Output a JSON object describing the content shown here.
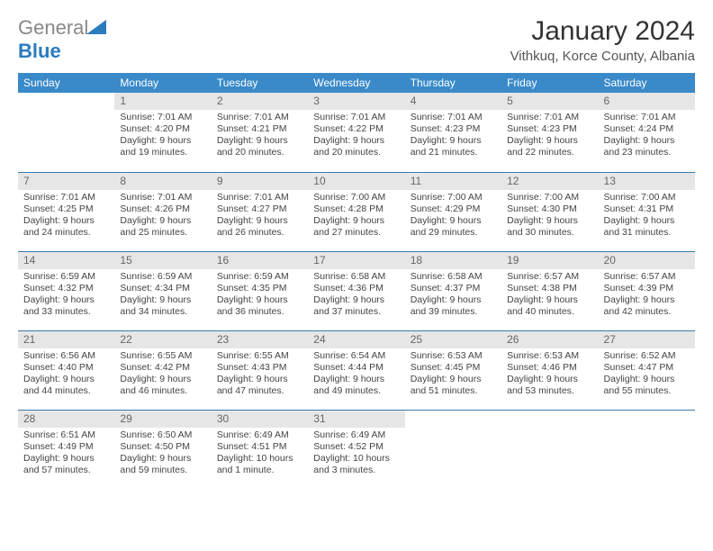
{
  "logo": {
    "word1": "General",
    "word2": "Blue"
  },
  "title": "January 2024",
  "location": "Vithkuq, Korce County, Albania",
  "colors": {
    "header_bg": "#3a8ac9",
    "header_text": "#ffffff",
    "daynum_bg": "#e6e6e6",
    "row_border": "#3a7aa8",
    "logo_gray": "#888888",
    "logo_blue": "#2b7bbf"
  },
  "weekdays": [
    "Sunday",
    "Monday",
    "Tuesday",
    "Wednesday",
    "Thursday",
    "Friday",
    "Saturday"
  ],
  "first_day_of_week_index": 1,
  "days": [
    {
      "n": "1",
      "sr": "Sunrise: 7:01 AM",
      "ss": "Sunset: 4:20 PM",
      "d1": "Daylight: 9 hours",
      "d2": "and 19 minutes."
    },
    {
      "n": "2",
      "sr": "Sunrise: 7:01 AM",
      "ss": "Sunset: 4:21 PM",
      "d1": "Daylight: 9 hours",
      "d2": "and 20 minutes."
    },
    {
      "n": "3",
      "sr": "Sunrise: 7:01 AM",
      "ss": "Sunset: 4:22 PM",
      "d1": "Daylight: 9 hours",
      "d2": "and 20 minutes."
    },
    {
      "n": "4",
      "sr": "Sunrise: 7:01 AM",
      "ss": "Sunset: 4:23 PM",
      "d1": "Daylight: 9 hours",
      "d2": "and 21 minutes."
    },
    {
      "n": "5",
      "sr": "Sunrise: 7:01 AM",
      "ss": "Sunset: 4:23 PM",
      "d1": "Daylight: 9 hours",
      "d2": "and 22 minutes."
    },
    {
      "n": "6",
      "sr": "Sunrise: 7:01 AM",
      "ss": "Sunset: 4:24 PM",
      "d1": "Daylight: 9 hours",
      "d2": "and 23 minutes."
    },
    {
      "n": "7",
      "sr": "Sunrise: 7:01 AM",
      "ss": "Sunset: 4:25 PM",
      "d1": "Daylight: 9 hours",
      "d2": "and 24 minutes."
    },
    {
      "n": "8",
      "sr": "Sunrise: 7:01 AM",
      "ss": "Sunset: 4:26 PM",
      "d1": "Daylight: 9 hours",
      "d2": "and 25 minutes."
    },
    {
      "n": "9",
      "sr": "Sunrise: 7:01 AM",
      "ss": "Sunset: 4:27 PM",
      "d1": "Daylight: 9 hours",
      "d2": "and 26 minutes."
    },
    {
      "n": "10",
      "sr": "Sunrise: 7:00 AM",
      "ss": "Sunset: 4:28 PM",
      "d1": "Daylight: 9 hours",
      "d2": "and 27 minutes."
    },
    {
      "n": "11",
      "sr": "Sunrise: 7:00 AM",
      "ss": "Sunset: 4:29 PM",
      "d1": "Daylight: 9 hours",
      "d2": "and 29 minutes."
    },
    {
      "n": "12",
      "sr": "Sunrise: 7:00 AM",
      "ss": "Sunset: 4:30 PM",
      "d1": "Daylight: 9 hours",
      "d2": "and 30 minutes."
    },
    {
      "n": "13",
      "sr": "Sunrise: 7:00 AM",
      "ss": "Sunset: 4:31 PM",
      "d1": "Daylight: 9 hours",
      "d2": "and 31 minutes."
    },
    {
      "n": "14",
      "sr": "Sunrise: 6:59 AM",
      "ss": "Sunset: 4:32 PM",
      "d1": "Daylight: 9 hours",
      "d2": "and 33 minutes."
    },
    {
      "n": "15",
      "sr": "Sunrise: 6:59 AM",
      "ss": "Sunset: 4:34 PM",
      "d1": "Daylight: 9 hours",
      "d2": "and 34 minutes."
    },
    {
      "n": "16",
      "sr": "Sunrise: 6:59 AM",
      "ss": "Sunset: 4:35 PM",
      "d1": "Daylight: 9 hours",
      "d2": "and 36 minutes."
    },
    {
      "n": "17",
      "sr": "Sunrise: 6:58 AM",
      "ss": "Sunset: 4:36 PM",
      "d1": "Daylight: 9 hours",
      "d2": "and 37 minutes."
    },
    {
      "n": "18",
      "sr": "Sunrise: 6:58 AM",
      "ss": "Sunset: 4:37 PM",
      "d1": "Daylight: 9 hours",
      "d2": "and 39 minutes."
    },
    {
      "n": "19",
      "sr": "Sunrise: 6:57 AM",
      "ss": "Sunset: 4:38 PM",
      "d1": "Daylight: 9 hours",
      "d2": "and 40 minutes."
    },
    {
      "n": "20",
      "sr": "Sunrise: 6:57 AM",
      "ss": "Sunset: 4:39 PM",
      "d1": "Daylight: 9 hours",
      "d2": "and 42 minutes."
    },
    {
      "n": "21",
      "sr": "Sunrise: 6:56 AM",
      "ss": "Sunset: 4:40 PM",
      "d1": "Daylight: 9 hours",
      "d2": "and 44 minutes."
    },
    {
      "n": "22",
      "sr": "Sunrise: 6:55 AM",
      "ss": "Sunset: 4:42 PM",
      "d1": "Daylight: 9 hours",
      "d2": "and 46 minutes."
    },
    {
      "n": "23",
      "sr": "Sunrise: 6:55 AM",
      "ss": "Sunset: 4:43 PM",
      "d1": "Daylight: 9 hours",
      "d2": "and 47 minutes."
    },
    {
      "n": "24",
      "sr": "Sunrise: 6:54 AM",
      "ss": "Sunset: 4:44 PM",
      "d1": "Daylight: 9 hours",
      "d2": "and 49 minutes."
    },
    {
      "n": "25",
      "sr": "Sunrise: 6:53 AM",
      "ss": "Sunset: 4:45 PM",
      "d1": "Daylight: 9 hours",
      "d2": "and 51 minutes."
    },
    {
      "n": "26",
      "sr": "Sunrise: 6:53 AM",
      "ss": "Sunset: 4:46 PM",
      "d1": "Daylight: 9 hours",
      "d2": "and 53 minutes."
    },
    {
      "n": "27",
      "sr": "Sunrise: 6:52 AM",
      "ss": "Sunset: 4:47 PM",
      "d1": "Daylight: 9 hours",
      "d2": "and 55 minutes."
    },
    {
      "n": "28",
      "sr": "Sunrise: 6:51 AM",
      "ss": "Sunset: 4:49 PM",
      "d1": "Daylight: 9 hours",
      "d2": "and 57 minutes."
    },
    {
      "n": "29",
      "sr": "Sunrise: 6:50 AM",
      "ss": "Sunset: 4:50 PM",
      "d1": "Daylight: 9 hours",
      "d2": "and 59 minutes."
    },
    {
      "n": "30",
      "sr": "Sunrise: 6:49 AM",
      "ss": "Sunset: 4:51 PM",
      "d1": "Daylight: 10 hours",
      "d2": "and 1 minute."
    },
    {
      "n": "31",
      "sr": "Sunrise: 6:49 AM",
      "ss": "Sunset: 4:52 PM",
      "d1": "Daylight: 10 hours",
      "d2": "and 3 minutes."
    }
  ]
}
